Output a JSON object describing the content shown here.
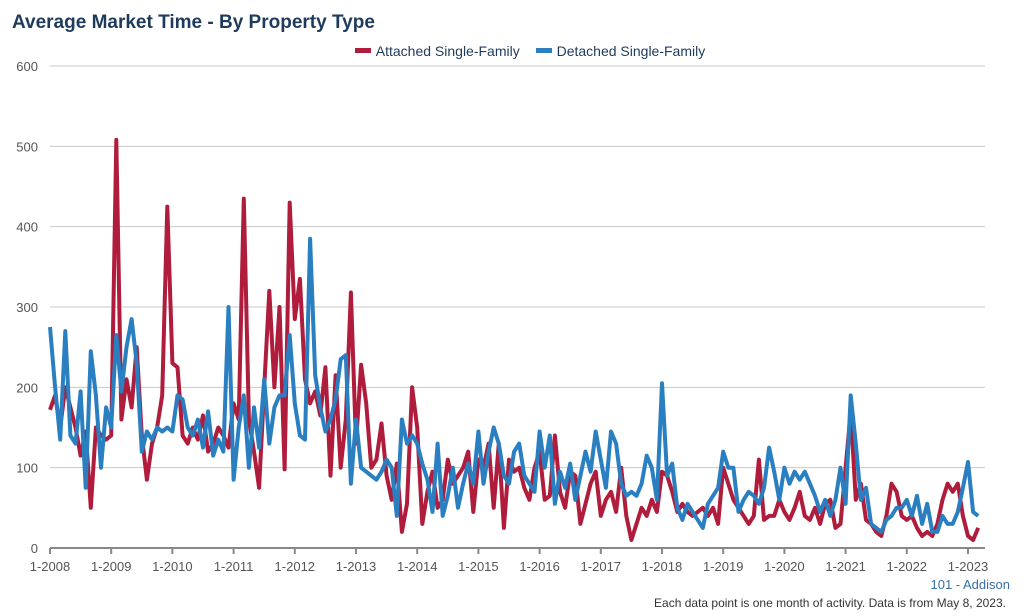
{
  "chart_data": {
    "type": "line",
    "title": "Average Market Time - By Property Type",
    "xlabel": "",
    "ylabel": "",
    "ylim": [
      0,
      600
    ],
    "yticks": [
      "0",
      "100",
      "200",
      "300",
      "400",
      "500",
      "600"
    ],
    "xticks": [
      "1-2008",
      "1-2009",
      "1-2010",
      "1-2011",
      "1-2012",
      "1-2013",
      "1-2014",
      "1-2015",
      "1-2016",
      "1-2017",
      "1-2018",
      "1-2019",
      "1-2020",
      "1-2021",
      "1-2022",
      "1-2023"
    ],
    "x_start": "1-2008",
    "x_unit": "month",
    "grid": true,
    "legend_placement": "top-center",
    "series": [
      {
        "name": "Attached Single-Family",
        "color": "#b01c3c",
        "values": [
          172,
          190,
          150,
          200,
          175,
          150,
          115,
          145,
          50,
          150,
          140,
          135,
          140,
          508,
          160,
          210,
          175,
          250,
          140,
          85,
          130,
          150,
          190,
          425,
          230,
          225,
          140,
          130,
          150,
          135,
          165,
          120,
          130,
          150,
          140,
          125,
          180,
          160,
          435,
          160,
          120,
          75,
          200,
          320,
          200,
          300,
          98,
          430,
          285,
          335,
          210,
          180,
          195,
          165,
          225,
          90,
          215,
          100,
          160,
          318,
          130,
          228,
          180,
          100,
          110,
          155,
          90,
          60,
          105,
          20,
          55,
          200,
          150,
          30,
          70,
          95,
          50,
          60,
          110,
          80,
          90,
          100,
          120,
          45,
          110,
          100,
          130,
          50,
          130,
          25,
          110,
          95,
          100,
          75,
          60,
          100,
          120,
          60,
          65,
          140,
          70,
          50,
          95,
          90,
          30,
          55,
          80,
          95,
          40,
          60,
          70,
          45,
          100,
          40,
          10,
          30,
          50,
          40,
          60,
          45,
          95,
          90,
          70,
          45,
          55,
          45,
          40,
          45,
          50,
          40,
          50,
          30,
          100,
          80,
          60,
          50,
          40,
          30,
          40,
          110,
          35,
          40,
          40,
          60,
          45,
          35,
          50,
          70,
          40,
          35,
          50,
          30,
          55,
          60,
          25,
          30,
          100,
          170,
          60,
          80,
          35,
          30,
          20,
          15,
          40,
          80,
          70,
          40,
          35,
          40,
          25,
          15,
          20,
          15,
          30,
          60,
          80,
          70,
          80,
          40,
          15,
          10,
          25
        ]
      },
      {
        "name": "Detached Single-Family",
        "color": "#2a7fc1",
        "values": [
          275,
          200,
          135,
          270,
          140,
          130,
          195,
          75,
          245,
          190,
          100,
          175,
          150,
          265,
          195,
          250,
          285,
          230,
          120,
          145,
          135,
          150,
          145,
          150,
          145,
          190,
          185,
          150,
          140,
          160,
          125,
          170,
          115,
          135,
          120,
          300,
          85,
          150,
          190,
          100,
          175,
          125,
          210,
          130,
          175,
          190,
          190,
          265,
          180,
          140,
          135,
          385,
          215,
          175,
          145,
          160,
          185,
          235,
          240,
          80,
          160,
          100,
          95,
          90,
          85,
          95,
          110,
          100,
          40,
          160,
          130,
          140,
          130,
          105,
          85,
          45,
          130,
          40,
          65,
          100,
          50,
          80,
          105,
          80,
          145,
          80,
          120,
          150,
          130,
          90,
          80,
          120,
          130,
          90,
          80,
          70,
          145,
          100,
          140,
          55,
          95,
          75,
          105,
          60,
          90,
          120,
          95,
          145,
          110,
          75,
          145,
          130,
          80,
          65,
          70,
          65,
          80,
          115,
          100,
          60,
          205,
          90,
          105,
          50,
          35,
          55,
          45,
          35,
          25,
          55,
          65,
          75,
          120,
          100,
          100,
          45,
          60,
          70,
          65,
          55,
          75,
          125,
          95,
          60,
          100,
          80,
          95,
          85,
          95,
          80,
          65,
          45,
          60,
          40,
          60,
          100,
          55,
          190,
          130,
          60,
          75,
          30,
          25,
          20,
          35,
          40,
          50,
          50,
          60,
          40,
          65,
          30,
          55,
          20,
          20,
          40,
          30,
          30,
          45,
          75,
          107,
          45,
          40
        ]
      }
    ]
  },
  "footer": {
    "location": "101 - Addison",
    "note": "Each data point is one month of activity. Data is from May 8, 2023."
  }
}
